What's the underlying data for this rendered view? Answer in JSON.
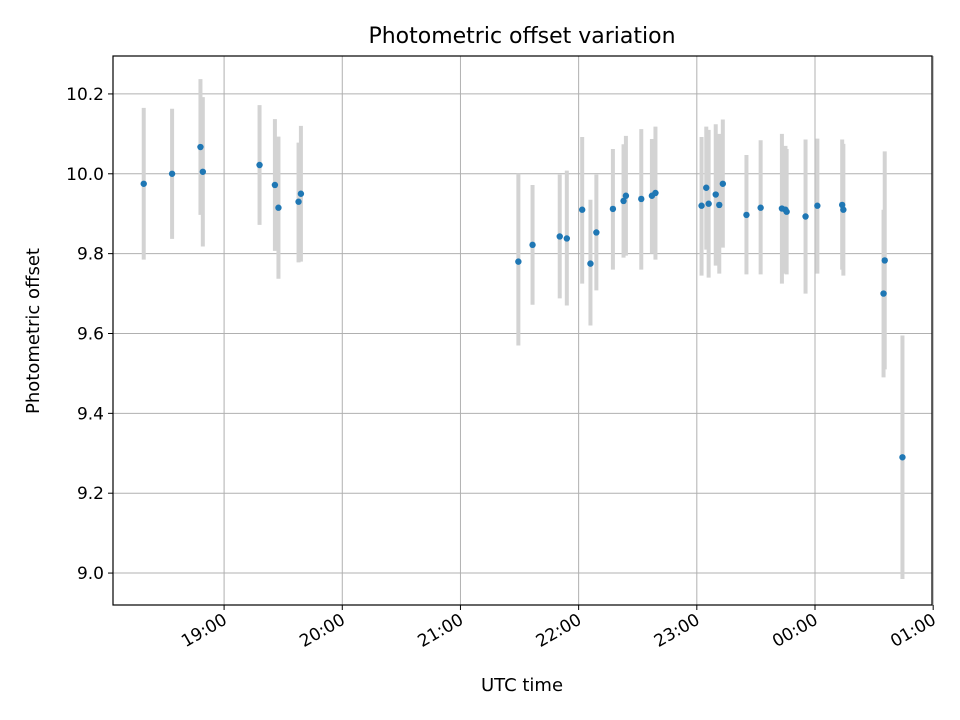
{
  "chart_data": {
    "type": "scatter",
    "title": "Photometric offset variation",
    "xlabel": "UTC time",
    "ylabel": "Photometric offset",
    "x_unit": "hours",
    "xlim": [
      18.06,
      24.99
    ],
    "ylim": [
      8.92,
      10.295
    ],
    "grid": true,
    "x_ticks": [
      {
        "value": 19,
        "label": "19:00"
      },
      {
        "value": 20,
        "label": "20:00"
      },
      {
        "value": 21,
        "label": "21:00"
      },
      {
        "value": 22,
        "label": "22:00"
      },
      {
        "value": 23,
        "label": "23:00"
      },
      {
        "value": 24,
        "label": "00:00"
      },
      {
        "value": 25,
        "label": "01:00"
      }
    ],
    "y_ticks": [
      {
        "value": 9.0,
        "label": "9.0"
      },
      {
        "value": 9.2,
        "label": "9.2"
      },
      {
        "value": 9.4,
        "label": "9.4"
      },
      {
        "value": 9.6,
        "label": "9.6"
      },
      {
        "value": 9.8,
        "label": "9.8"
      },
      {
        "value": 10.0,
        "label": "10.0"
      },
      {
        "value": 10.2,
        "label": "10.2"
      }
    ],
    "point_color": "#1f77b4",
    "error_color": "#d3d3d3",
    "points": [
      {
        "x": 18.32,
        "y": 9.975,
        "lo": 9.785,
        "hi": 10.165
      },
      {
        "x": 18.56,
        "y": 10.0,
        "lo": 9.837,
        "hi": 10.163
      },
      {
        "x": 18.8,
        "y": 10.067,
        "lo": 9.897,
        "hi": 10.237
      },
      {
        "x": 18.82,
        "y": 10.005,
        "lo": 9.818,
        "hi": 10.192
      },
      {
        "x": 19.3,
        "y": 10.022,
        "lo": 9.872,
        "hi": 10.172
      },
      {
        "x": 19.43,
        "y": 9.972,
        "lo": 9.807,
        "hi": 10.137
      },
      {
        "x": 19.46,
        "y": 9.915,
        "lo": 9.737,
        "hi": 10.093
      },
      {
        "x": 19.63,
        "y": 9.93,
        "lo": 9.778,
        "hi": 10.078
      },
      {
        "x": 19.65,
        "y": 9.95,
        "lo": 9.78,
        "hi": 10.12
      },
      {
        "x": 21.49,
        "y": 9.78,
        "lo": 9.57,
        "hi": 10.0
      },
      {
        "x": 21.61,
        "y": 9.822,
        "lo": 9.672,
        "hi": 9.972
      },
      {
        "x": 21.84,
        "y": 9.843,
        "lo": 9.688,
        "hi": 9.998
      },
      {
        "x": 21.9,
        "y": 9.838,
        "lo": 9.67,
        "hi": 10.008
      },
      {
        "x": 22.03,
        "y": 9.91,
        "lo": 9.725,
        "hi": 10.092
      },
      {
        "x": 22.1,
        "y": 9.775,
        "lo": 9.62,
        "hi": 9.935
      },
      {
        "x": 22.15,
        "y": 9.853,
        "lo": 9.708,
        "hi": 9.998
      },
      {
        "x": 22.29,
        "y": 9.912,
        "lo": 9.76,
        "hi": 10.062
      },
      {
        "x": 22.38,
        "y": 9.932,
        "lo": 9.79,
        "hi": 10.074
      },
      {
        "x": 22.4,
        "y": 9.945,
        "lo": 9.795,
        "hi": 10.095
      },
      {
        "x": 22.53,
        "y": 9.937,
        "lo": 9.76,
        "hi": 10.112
      },
      {
        "x": 22.62,
        "y": 9.945,
        "lo": 9.8,
        "hi": 10.087
      },
      {
        "x": 22.65,
        "y": 9.952,
        "lo": 9.785,
        "hi": 10.118
      },
      {
        "x": 23.04,
        "y": 9.92,
        "lo": 9.745,
        "hi": 10.092
      },
      {
        "x": 23.08,
        "y": 9.965,
        "lo": 9.81,
        "hi": 10.118
      },
      {
        "x": 23.1,
        "y": 9.925,
        "lo": 9.74,
        "hi": 10.11
      },
      {
        "x": 23.16,
        "y": 9.948,
        "lo": 9.77,
        "hi": 10.124
      },
      {
        "x": 23.19,
        "y": 9.922,
        "lo": 9.75,
        "hi": 10.1
      },
      {
        "x": 23.22,
        "y": 9.975,
        "lo": 9.815,
        "hi": 10.136
      },
      {
        "x": 23.42,
        "y": 9.897,
        "lo": 9.748,
        "hi": 10.047
      },
      {
        "x": 23.54,
        "y": 9.915,
        "lo": 9.748,
        "hi": 10.084
      },
      {
        "x": 23.72,
        "y": 9.913,
        "lo": 9.725,
        "hi": 10.1
      },
      {
        "x": 23.75,
        "y": 9.91,
        "lo": 9.75,
        "hi": 10.07
      },
      {
        "x": 23.76,
        "y": 9.905,
        "lo": 9.748,
        "hi": 10.062
      },
      {
        "x": 23.92,
        "y": 9.893,
        "lo": 9.7,
        "hi": 10.086
      },
      {
        "x": 24.02,
        "y": 9.92,
        "lo": 9.75,
        "hi": 10.088
      },
      {
        "x": 24.23,
        "y": 9.922,
        "lo": 9.76,
        "hi": 10.086
      },
      {
        "x": 24.24,
        "y": 9.91,
        "lo": 9.745,
        "hi": 10.075
      },
      {
        "x": 24.58,
        "y": 9.7,
        "lo": 9.49,
        "hi": 9.91
      },
      {
        "x": 24.59,
        "y": 9.783,
        "lo": 9.51,
        "hi": 10.056
      },
      {
        "x": 24.74,
        "y": 9.29,
        "lo": 8.985,
        "hi": 9.595
      }
    ]
  }
}
